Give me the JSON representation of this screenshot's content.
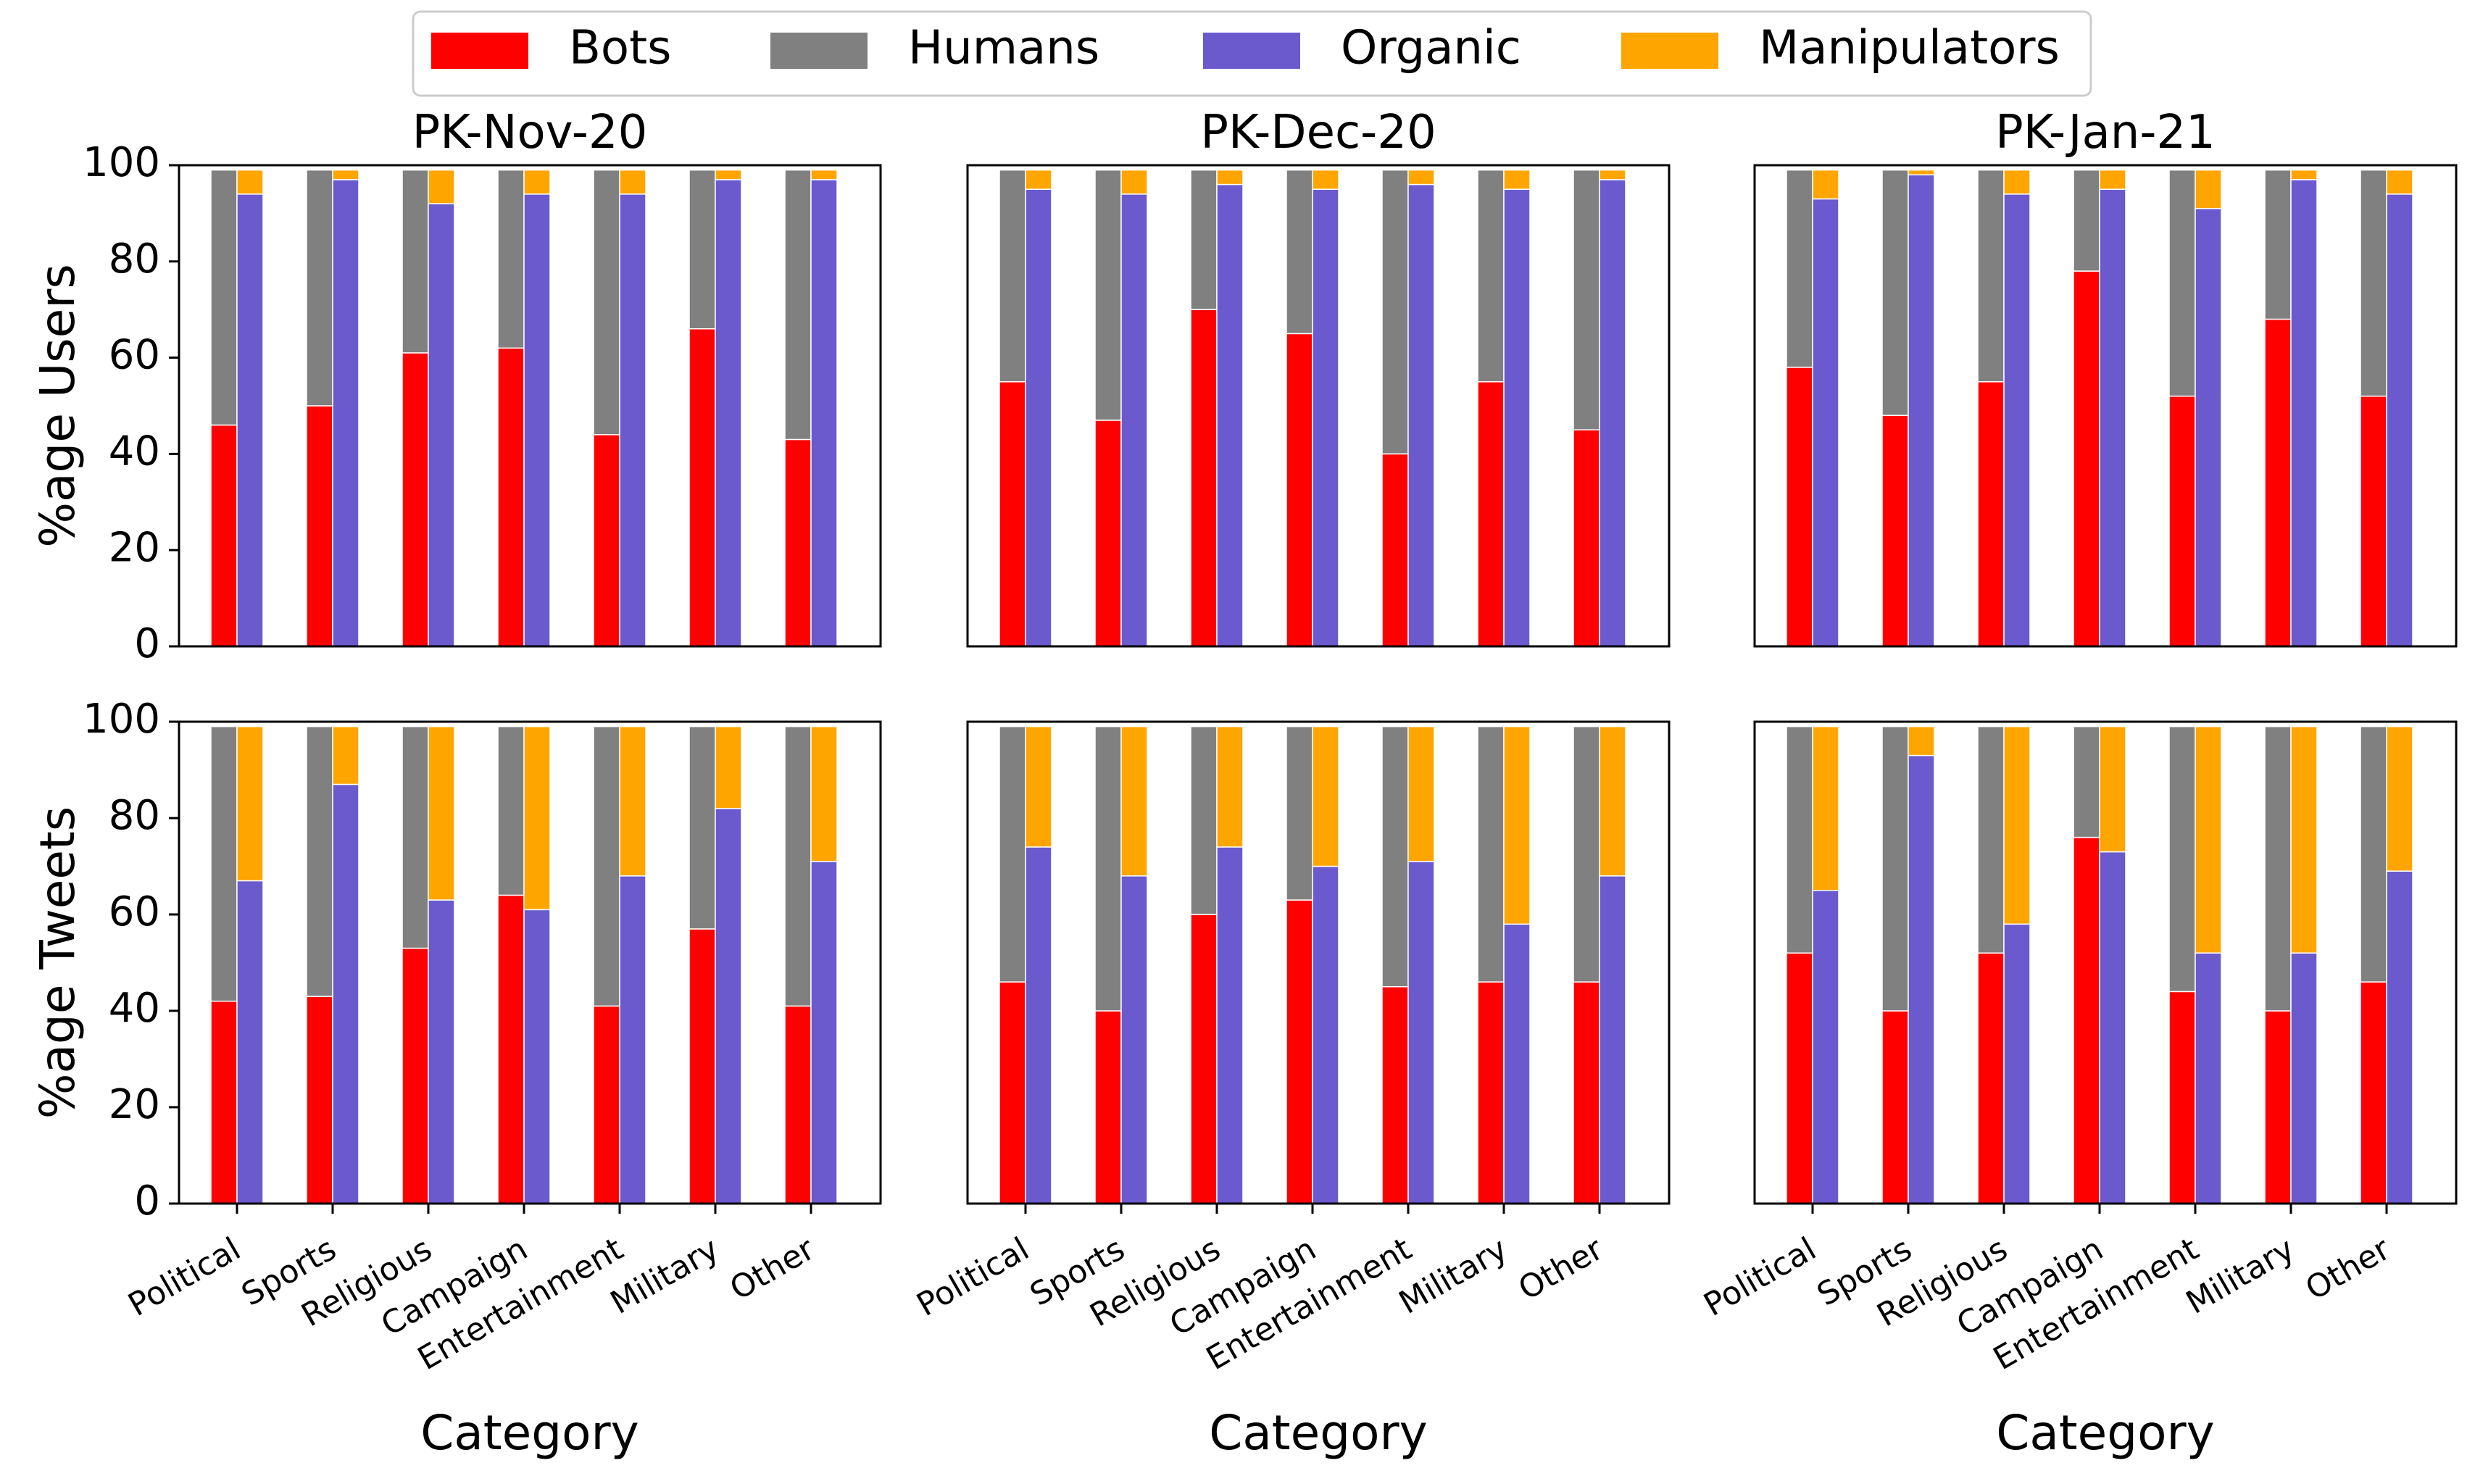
{
  "legend": {
    "entries": [
      {
        "label": "Bots",
        "color": "#ff0000"
      },
      {
        "label": "Humans",
        "color": "#808080"
      },
      {
        "label": "Organic",
        "color": "#6a5acd"
      },
      {
        "label": "Manipulators",
        "color": "#ffa500"
      }
    ],
    "placement": "top-center"
  },
  "xlabel": "Category",
  "row_ylabels": [
    "%age Users",
    "%age Tweets"
  ],
  "chart_data": [
    {
      "type": "bar",
      "stacked": true,
      "title": "PK-Nov-20",
      "ylabel": "%age Users",
      "xlabel": "",
      "ylim": [
        0,
        100
      ],
      "yticks": [
        0,
        20,
        40,
        60,
        80,
        100
      ],
      "categories": [
        "Political",
        "Sports",
        "Religious",
        "Campaign",
        "Entertainment",
        "Military",
        "Other"
      ],
      "series": [
        {
          "name": "Bots",
          "stack": "left",
          "values": [
            46,
            50,
            61,
            62,
            44,
            66,
            43
          ]
        },
        {
          "name": "Humans",
          "stack": "left",
          "values": [
            53,
            49,
            38,
            37,
            55,
            33,
            56
          ]
        },
        {
          "name": "Organic",
          "stack": "right",
          "values": [
            94,
            97,
            92,
            94,
            94,
            97,
            97
          ]
        },
        {
          "name": "Manipulators",
          "stack": "right",
          "values": [
            5,
            2,
            7,
            5,
            5,
            2,
            2
          ]
        }
      ]
    },
    {
      "type": "bar",
      "stacked": true,
      "title": "PK-Dec-20",
      "ylabel": "",
      "xlabel": "",
      "ylim": [
        0,
        100
      ],
      "categories": [
        "Political",
        "Sports",
        "Religious",
        "Campaign",
        "Entertainment",
        "Military",
        "Other"
      ],
      "series": [
        {
          "name": "Bots",
          "stack": "left",
          "values": [
            55,
            47,
            70,
            65,
            40,
            55,
            45
          ]
        },
        {
          "name": "Humans",
          "stack": "left",
          "values": [
            44,
            52,
            29,
            34,
            59,
            44,
            54
          ]
        },
        {
          "name": "Organic",
          "stack": "right",
          "values": [
            95,
            94,
            96,
            95,
            96,
            95,
            97
          ]
        },
        {
          "name": "Manipulators",
          "stack": "right",
          "values": [
            4,
            5,
            3,
            4,
            3,
            4,
            2
          ]
        }
      ]
    },
    {
      "type": "bar",
      "stacked": true,
      "title": "PK-Jan-21",
      "ylabel": "",
      "xlabel": "",
      "ylim": [
        0,
        100
      ],
      "categories": [
        "Political",
        "Sports",
        "Religious",
        "Campaign",
        "Entertainment",
        "Military",
        "Other"
      ],
      "series": [
        {
          "name": "Bots",
          "stack": "left",
          "values": [
            58,
            48,
            55,
            78,
            52,
            68,
            52
          ]
        },
        {
          "name": "Humans",
          "stack": "left",
          "values": [
            41,
            51,
            44,
            21,
            47,
            31,
            47
          ]
        },
        {
          "name": "Organic",
          "stack": "right",
          "values": [
            93,
            98,
            94,
            95,
            91,
            97,
            94
          ]
        },
        {
          "name": "Manipulators",
          "stack": "right",
          "values": [
            6,
            1,
            5,
            4,
            8,
            2,
            5
          ]
        }
      ]
    },
    {
      "type": "bar",
      "stacked": true,
      "title": "",
      "ylabel": "%age Tweets",
      "xlabel": "Category",
      "ylim": [
        0,
        100
      ],
      "yticks": [
        0,
        20,
        40,
        60,
        80,
        100
      ],
      "categories": [
        "Political",
        "Sports",
        "Religious",
        "Campaign",
        "Entertainment",
        "Military",
        "Other"
      ],
      "series": [
        {
          "name": "Bots",
          "stack": "left",
          "values": [
            42,
            43,
            53,
            64,
            41,
            57,
            41
          ]
        },
        {
          "name": "Humans",
          "stack": "left",
          "values": [
            57,
            56,
            46,
            35,
            58,
            42,
            58
          ]
        },
        {
          "name": "Organic",
          "stack": "right",
          "values": [
            67,
            87,
            63,
            61,
            68,
            82,
            71
          ]
        },
        {
          "name": "Manipulators",
          "stack": "right",
          "values": [
            32,
            12,
            36,
            38,
            31,
            17,
            28
          ]
        }
      ]
    },
    {
      "type": "bar",
      "stacked": true,
      "title": "",
      "ylabel": "",
      "xlabel": "Category",
      "ylim": [
        0,
        100
      ],
      "categories": [
        "Political",
        "Sports",
        "Religious",
        "Campaign",
        "Entertainment",
        "Military",
        "Other"
      ],
      "series": [
        {
          "name": "Bots",
          "stack": "left",
          "values": [
            46,
            40,
            60,
            63,
            45,
            46,
            46
          ]
        },
        {
          "name": "Humans",
          "stack": "left",
          "values": [
            53,
            59,
            39,
            36,
            54,
            53,
            53
          ]
        },
        {
          "name": "Organic",
          "stack": "right",
          "values": [
            74,
            68,
            74,
            70,
            71,
            58,
            68
          ]
        },
        {
          "name": "Manipulators",
          "stack": "right",
          "values": [
            25,
            31,
            25,
            29,
            28,
            41,
            31
          ]
        }
      ]
    },
    {
      "type": "bar",
      "stacked": true,
      "title": "",
      "ylabel": "",
      "xlabel": "Category",
      "ylim": [
        0,
        100
      ],
      "categories": [
        "Political",
        "Sports",
        "Religious",
        "Campaign",
        "Entertainment",
        "Military",
        "Other"
      ],
      "series": [
        {
          "name": "Bots",
          "stack": "left",
          "values": [
            52,
            40,
            52,
            76,
            44,
            40,
            46
          ]
        },
        {
          "name": "Humans",
          "stack": "left",
          "values": [
            47,
            59,
            47,
            23,
            55,
            59,
            53
          ]
        },
        {
          "name": "Organic",
          "stack": "right",
          "values": [
            65,
            93,
            58,
            73,
            52,
            52,
            69
          ]
        },
        {
          "name": "Manipulators",
          "stack": "right",
          "values": [
            34,
            6,
            41,
            26,
            47,
            47,
            30
          ]
        }
      ]
    }
  ]
}
